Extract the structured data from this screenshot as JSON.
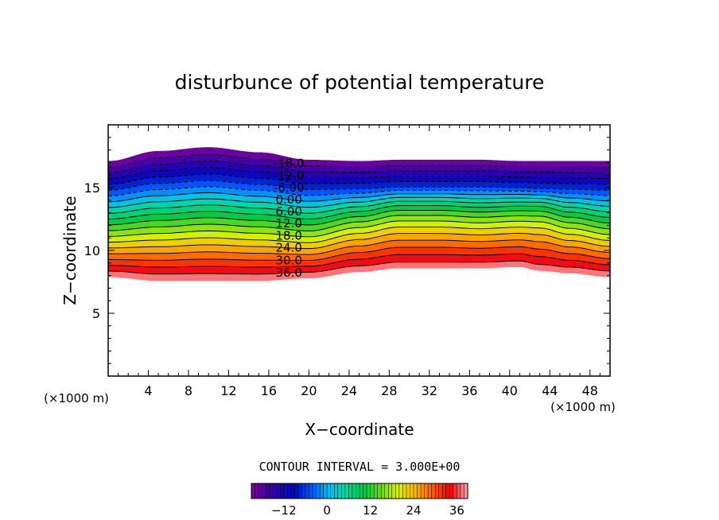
{
  "chart_data": {
    "type": "heatmap",
    "subtype": "filled-contour",
    "title": "disturbunce of potential temperature",
    "xlabel": "X−coordinate",
    "ylabel": "Z−coordinate",
    "x_unit_label": "(×1000 m)",
    "y_unit_label": "(×1000 m)",
    "xlim": [
      0,
      50
    ],
    "ylim": [
      0,
      20
    ],
    "x_ticks": [
      "4",
      "8",
      "12",
      "16",
      "20",
      "24",
      "28",
      "32",
      "36",
      "40",
      "44",
      "48"
    ],
    "y_ticks": [
      "5",
      "10",
      "15"
    ],
    "contour_interval_text": "CONTOUR INTERVAL = 3.000E+00",
    "contour_interval": 3,
    "value_range": [
      -21,
      39
    ],
    "contour_labels": [
      "-18.0",
      "-12.0",
      "-6.00",
      "0.00",
      "6.00",
      "12.0",
      "18.0",
      "24.0",
      "30.0",
      "36.0"
    ],
    "colorbar": {
      "ticks": [
        "−12",
        "0",
        "12",
        "24",
        "36"
      ],
      "min": -21,
      "max": 39
    },
    "layer_profile": {
      "description_x": [
        0,
        5,
        10,
        15,
        20,
        25,
        29,
        33,
        37,
        41,
        43,
        46,
        50
      ],
      "bottom_z": [
        7.9,
        7.6,
        7.6,
        7.6,
        7.8,
        8.3,
        8.6,
        8.6,
        8.6,
        8.7,
        8.4,
        8.2,
        7.9
      ],
      "top_z": [
        17.1,
        17.9,
        18.2,
        17.8,
        17.2,
        17.1,
        17.2,
        17.2,
        17.2,
        17.1,
        17.1,
        17.1,
        17.1
      ],
      "hump_x": [
        0,
        5,
        10,
        15,
        20,
        25,
        29,
        33,
        37,
        41,
        43,
        46,
        50
      ],
      "hump_dz": [
        0,
        0.15,
        0.25,
        0.2,
        0,
        0.45,
        0.75,
        0.75,
        0.6,
        0.7,
        0.85,
        0.45,
        0.15
      ]
    },
    "grid": false,
    "legend": "colorbar-bottom"
  }
}
